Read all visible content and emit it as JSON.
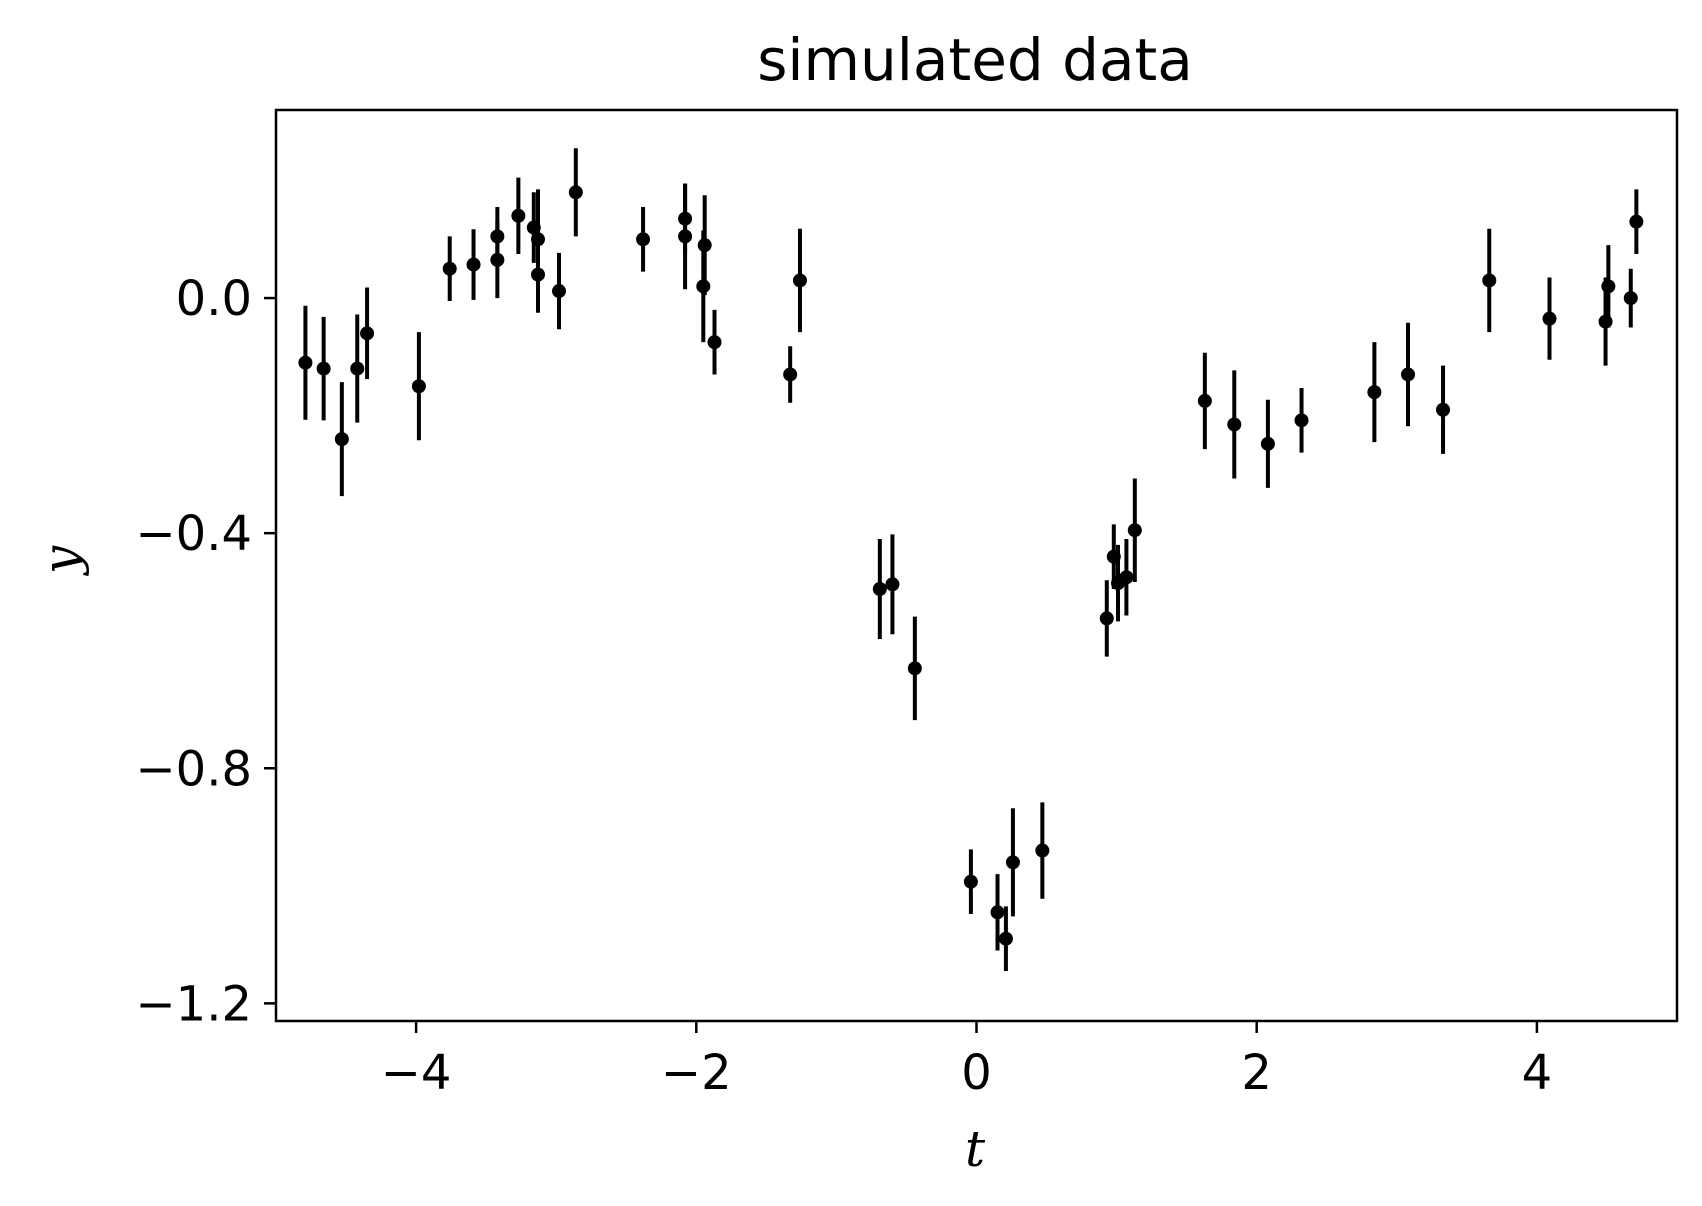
{
  "chart_data": {
    "type": "scatter",
    "title": "simulated data",
    "xlabel": "t",
    "ylabel": "y",
    "xlim": [
      -5,
      5
    ],
    "ylim": [
      -1.23,
      0.32
    ],
    "xticks": [
      -4,
      -2,
      0,
      2,
      4
    ],
    "xtick_labels": [
      "−4",
      "−2",
      "0",
      "2",
      "4"
    ],
    "yticks": [
      0.0,
      -0.4,
      -0.8,
      -1.2
    ],
    "ytick_labels": [
      "0.0",
      "−0.4",
      "−0.8",
      "−1.2"
    ],
    "grid": false,
    "legend": "none",
    "marker_color": "#000000",
    "error_bars": true,
    "points": [
      {
        "x": -4.79,
        "y": -0.11,
        "err": 0.097
      },
      {
        "x": -4.66,
        "y": -0.12,
        "err": 0.088
      },
      {
        "x": -4.53,
        "y": -0.24,
        "err": 0.097
      },
      {
        "x": -4.42,
        "y": -0.12,
        "err": 0.092
      },
      {
        "x": -4.35,
        "y": -0.06,
        "err": 0.078
      },
      {
        "x": -3.98,
        "y": -0.15,
        "err": 0.092
      },
      {
        "x": -3.76,
        "y": 0.05,
        "err": 0.055
      },
      {
        "x": -3.59,
        "y": 0.057,
        "err": 0.06
      },
      {
        "x": -3.42,
        "y": 0.065,
        "err": 0.065
      },
      {
        "x": -3.42,
        "y": 0.105,
        "err": 0.05
      },
      {
        "x": -3.27,
        "y": 0.14,
        "err": 0.065
      },
      {
        "x": -3.16,
        "y": 0.12,
        "err": 0.06
      },
      {
        "x": -3.13,
        "y": 0.1,
        "err": 0.085
      },
      {
        "x": -3.13,
        "y": 0.04,
        "err": 0.065
      },
      {
        "x": -2.98,
        "y": 0.012,
        "err": 0.065
      },
      {
        "x": -2.86,
        "y": 0.18,
        "err": 0.075
      },
      {
        "x": -2.38,
        "y": 0.1,
        "err": 0.055
      },
      {
        "x": -2.08,
        "y": 0.135,
        "err": 0.06
      },
      {
        "x": -2.08,
        "y": 0.105,
        "err": 0.09
      },
      {
        "x": -1.94,
        "y": 0.09,
        "err": 0.085
      },
      {
        "x": -1.95,
        "y": 0.02,
        "err": 0.095
      },
      {
        "x": -1.87,
        "y": -0.075,
        "err": 0.055
      },
      {
        "x": -1.33,
        "y": -0.13,
        "err": 0.048
      },
      {
        "x": -1.26,
        "y": 0.03,
        "err": 0.088
      },
      {
        "x": -0.69,
        "y": -0.495,
        "err": 0.085
      },
      {
        "x": -0.6,
        "y": -0.487,
        "err": 0.085
      },
      {
        "x": -0.44,
        "y": -0.63,
        "err": 0.088
      },
      {
        "x": -0.04,
        "y": -0.993,
        "err": 0.055
      },
      {
        "x": 0.15,
        "y": -1.045,
        "err": 0.065
      },
      {
        "x": 0.21,
        "y": -1.09,
        "err": 0.055
      },
      {
        "x": 0.26,
        "y": -0.96,
        "err": 0.092
      },
      {
        "x": 0.47,
        "y": -0.94,
        "err": 0.082
      },
      {
        "x": 0.93,
        "y": -0.545,
        "err": 0.065
      },
      {
        "x": 0.98,
        "y": -0.44,
        "err": 0.055
      },
      {
        "x": 1.01,
        "y": -0.485,
        "err": 0.065
      },
      {
        "x": 1.07,
        "y": -0.475,
        "err": 0.065
      },
      {
        "x": 1.13,
        "y": -0.395,
        "err": 0.088
      },
      {
        "x": 1.63,
        "y": -0.175,
        "err": 0.082
      },
      {
        "x": 1.84,
        "y": -0.215,
        "err": 0.092
      },
      {
        "x": 2.08,
        "y": -0.248,
        "err": 0.075
      },
      {
        "x": 2.32,
        "y": -0.208,
        "err": 0.055
      },
      {
        "x": 2.84,
        "y": -0.16,
        "err": 0.085
      },
      {
        "x": 3.08,
        "y": -0.13,
        "err": 0.088
      },
      {
        "x": 3.33,
        "y": -0.19,
        "err": 0.075
      },
      {
        "x": 3.66,
        "y": 0.03,
        "err": 0.088
      },
      {
        "x": 4.09,
        "y": -0.035,
        "err": 0.07
      },
      {
        "x": 4.49,
        "y": -0.04,
        "err": 0.075
      },
      {
        "x": 4.51,
        "y": 0.02,
        "err": 0.07
      },
      {
        "x": 4.67,
        "y": 0.0,
        "err": 0.05
      },
      {
        "x": 4.71,
        "y": 0.13,
        "err": 0.055
      }
    ]
  }
}
